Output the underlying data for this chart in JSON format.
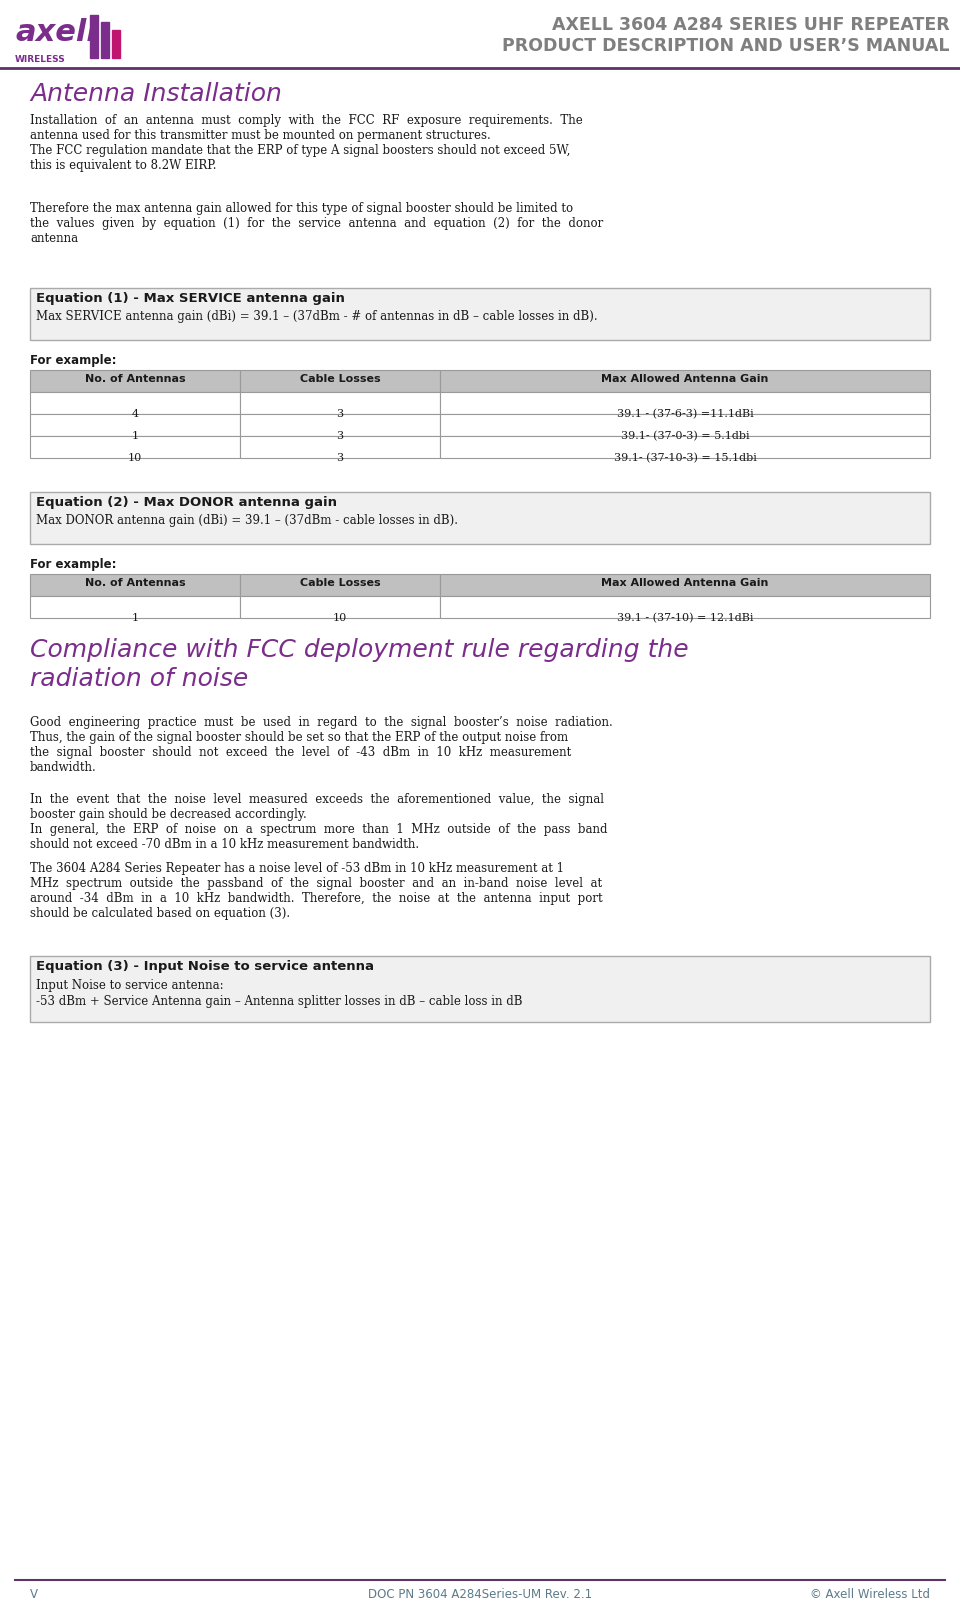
{
  "header_title1": "AXELL 3604 A284 SERIES UHF REPEATER",
  "header_title2": "PRODUCT DESCRIPTION AND USER’S MANUAL",
  "header_title_color": "#7f7f7f",
  "header_line_color": "#5c3566",
  "logo_text_axell": "axell",
  "logo_text_wireless": "WIRELESS",
  "logo_color_purple": "#7b2d8b",
  "logo_color_magenta": "#c0156e",
  "section1_title": "Antenna Installation",
  "section1_title_color": "#7b2d8b",
  "section1_para1": "Installation  of  an  antenna  must  comply  with  the  FCC  RF  exposure  requirements.  The\nantenna used for this transmitter must be mounted on permanent structures.\nThe FCC regulation mandate that the ERP of type A signal boosters should not exceed 5W,\nthis is equivalent to 8.2W EIRP.",
  "section1_para2": "Therefore the max antenna gain allowed for this type of signal booster should be limited to\nthe  values  given  by  equation  (1)  for  the  service  antenna  and  equation  (2)  for  the  donor\nantenna",
  "eq1_box_title": "Equation (1) - Max SERVICE antenna gain",
  "eq1_box_body": "Max SERVICE antenna gain (dBi) = 39.1 – (37dBm - # of antennas in dB – cable losses in dB).",
  "eq1_box_bg": "#f0f0f0",
  "eq1_box_border": "#aaaaaa",
  "for_example1": "For example:",
  "table1_headers": [
    "No. of Antennas",
    "Cable Losses",
    "Max Allowed Antenna Gain"
  ],
  "table1_rows": [
    [
      "4",
      "3",
      "39.1 - (37-6-3) =11.1dBi"
    ],
    [
      "1",
      "3",
      "39.1- (37-0-3) = 5.1dbi"
    ],
    [
      "10",
      "3",
      "39.1- (37-10-3) = 15.1dbi"
    ]
  ],
  "eq2_box_title": "Equation (2) - Max DONOR antenna gain",
  "eq2_box_body": "Max DONOR antenna gain (dBi) = 39.1 – (37dBm - cable losses in dB).",
  "for_example2": "For example:",
  "table2_headers": [
    "No. of Antennas",
    "Cable Losses",
    "Max Allowed Antenna Gain"
  ],
  "table2_rows": [
    [
      "1",
      "10",
      "39.1 - (37-10) = 12.1dBi"
    ]
  ],
  "section2_title": "Compliance with FCC deployment rule regarding the\nradiation of noise",
  "section2_title_color": "#7b2d8b",
  "section2_para1": "Good  engineering  practice  must  be  used  in  regard  to  the  signal  booster’s  noise  radiation.\nThus, the gain of the signal booster should be set so that the ERP of the output noise from\nthe  signal  booster  should  not  exceed  the  level  of  -43  dBm  in  10  kHz  measurement\nbandwidth.",
  "section2_para2": "In  the  event  that  the  noise  level  measured  exceeds  the  aforementioned  value,  the  signal\nbooster gain should be decreased accordingly.\nIn  general,  the  ERP  of  noise  on  a  spectrum  more  than  1  MHz  outside  of  the  pass  band\nshould not exceed -70 dBm in a 10 kHz measurement bandwidth.",
  "section2_para3": "The 3604 A284 Series Repeater has a noise level of -53 dBm in 10 kHz measurement at 1\nMHz  spectrum  outside  the  passband  of  the  signal  booster  and  an  in-band  noise  level  at\naround  -34  dBm  in  a  10  kHz  bandwidth.  Therefore,  the  noise  at  the  antenna  input  port\nshould be calculated based on equation (3).",
  "eq3_box_title": "Equation (3) - Input Noise to service antenna",
  "eq3_box_body1": "Input Noise to service antenna:",
  "eq3_box_body2": "-53 dBm + Service Antenna gain – Antenna splitter losses in dB – cable loss in dB",
  "eq3_box_bg": "#f0f0f0",
  "eq3_box_border": "#aaaaaa",
  "footer_left": "V",
  "footer_center": "DOC PN 3604 A284Series-UM Rev. 2.1",
  "footer_right": "© Axell Wireless Ltd",
  "footer_color": "#5c7a8c",
  "table_header_bg": "#c0c0c0",
  "table_row_bg": "#ffffff",
  "table_alt_bg": "#f5f5f5",
  "table_border": "#999999",
  "body_text_color": "#1a1a1a",
  "body_font_size": 8.5,
  "title_font_size": 18
}
